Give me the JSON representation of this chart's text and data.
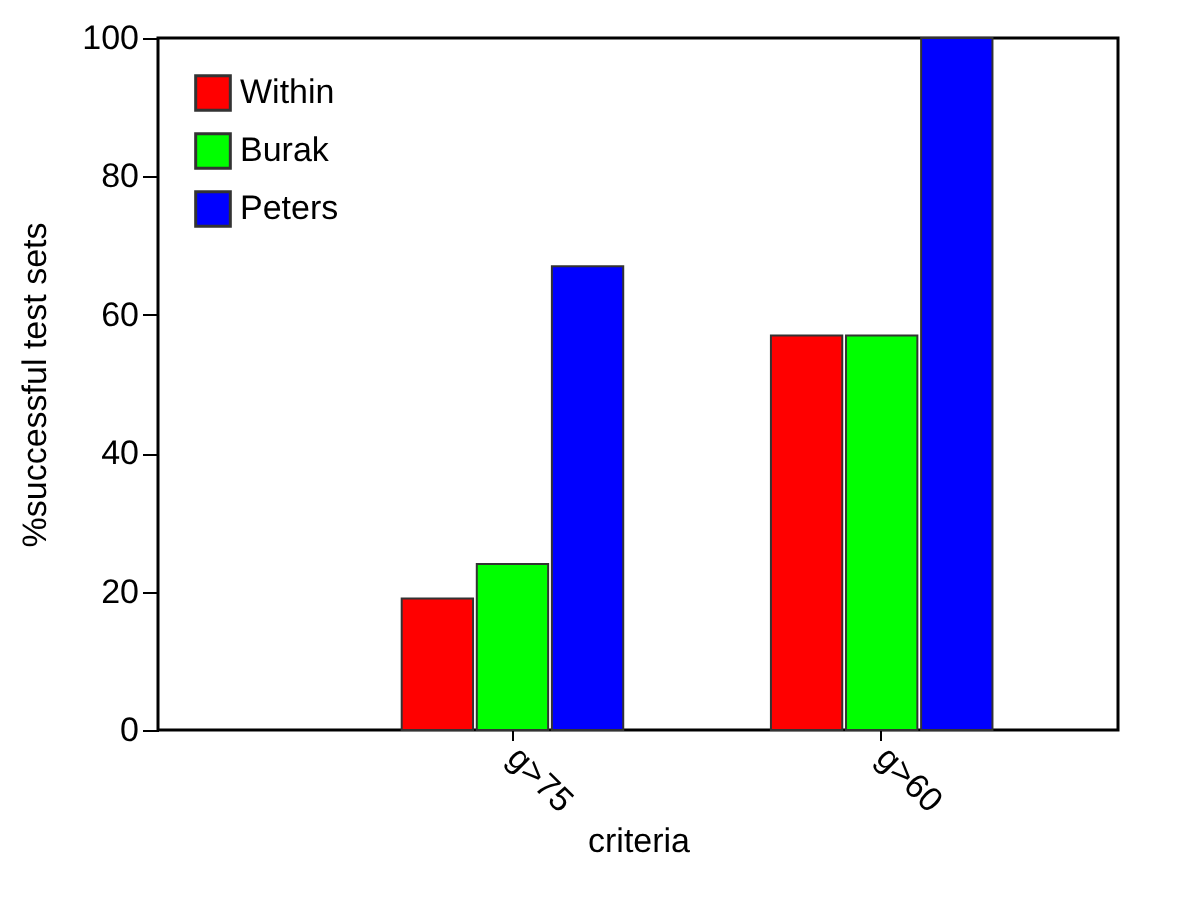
{
  "chart_data": {
    "type": "bar",
    "xlabel": "criteria",
    "ylabel": "%successful test sets",
    "categories": [
      "g>75",
      "g>60"
    ],
    "series": [
      {
        "name": "Within",
        "color": "#ff0000",
        "values": [
          19,
          57
        ]
      },
      {
        "name": "Burak",
        "color": "#00ff00",
        "values": [
          24,
          57
        ]
      },
      {
        "name": "Peters",
        "color": "#0000ff",
        "values": [
          67,
          100
        ]
      }
    ],
    "ylim": [
      0,
      100
    ],
    "yticks": [
      0,
      20,
      40,
      60,
      80,
      100
    ],
    "legend": "top left"
  }
}
